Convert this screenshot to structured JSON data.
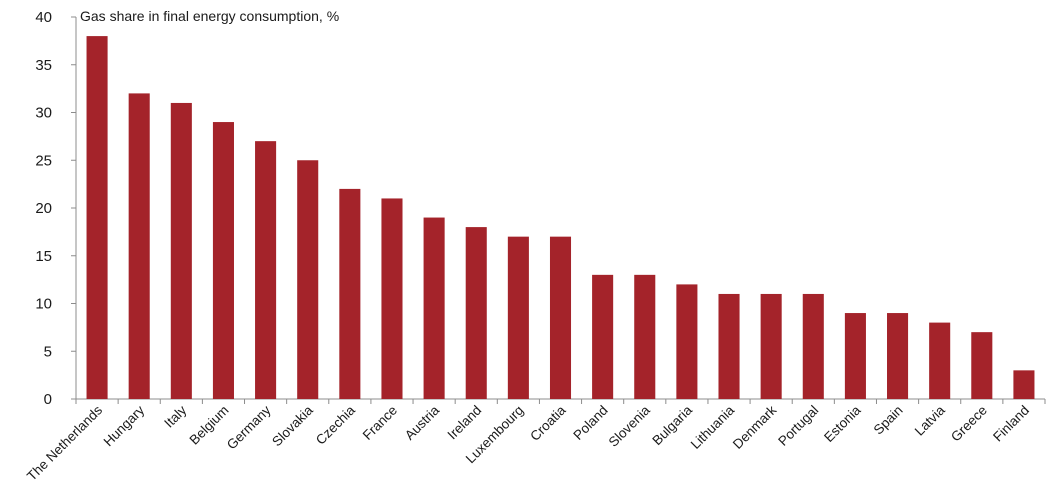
{
  "chart_data": {
    "type": "bar",
    "title": "Gas share in final energy consumption, %",
    "xlabel": "",
    "ylabel": "",
    "ylim": [
      0,
      40
    ],
    "yticks": [
      0,
      5,
      10,
      15,
      20,
      25,
      30,
      35,
      40
    ],
    "grid": false,
    "legend": "none",
    "bar_color": "#a4232a",
    "categories": [
      "The Netherlands",
      "Hungary",
      "Italy",
      "Belgium",
      "Germany",
      "Slovakia",
      "Czechia",
      "France",
      "Austria",
      "Ireland",
      "Luxembourg",
      "Croatia",
      "Poland",
      "Slovenia",
      "Bulgaria",
      "Lithuania",
      "Denmark",
      "Portugal",
      "Estonia",
      "Spain",
      "Latvia",
      "Greece",
      "Finland"
    ],
    "values": [
      38,
      32,
      31,
      29,
      27,
      25,
      22,
      21,
      19,
      18,
      17,
      17,
      13,
      13,
      12,
      11,
      11,
      11,
      9,
      9,
      8,
      7,
      3
    ]
  }
}
